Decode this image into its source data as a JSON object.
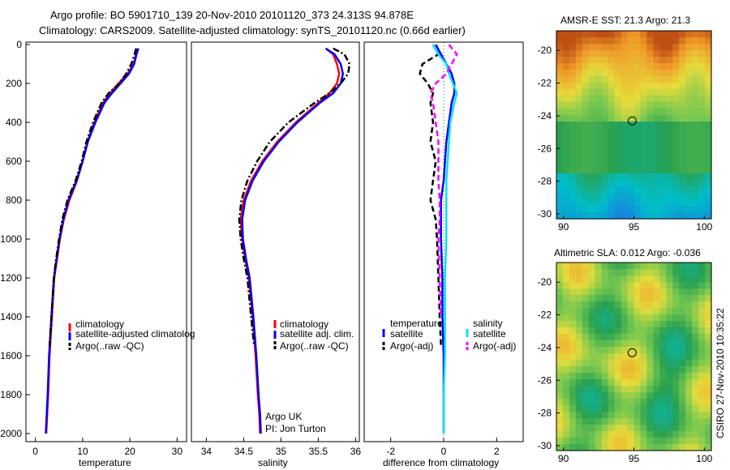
{
  "header": {
    "line1": "Argo profile: BO 5901710_139 20-Nov-2010 20101120_373 24.313S 94.878E",
    "line2": "Climatology: CARS2009. Satellite-adjusted climatology: synTS_20101120.nc (0.66d earlier)"
  },
  "side_label": "CSIRO 27-Nov-2010 10:35:22",
  "colors": {
    "climatology": "#ff0000",
    "satellite": "#0000ff",
    "argo": "#000000",
    "sat_salinity": "#00e5ee",
    "argo_salinity": "#ff00ff"
  },
  "chart_data": [
    {
      "type": "line",
      "panel": "temperature",
      "xlabel": "temperature",
      "ylabel": "",
      "xlim": [
        -2,
        32
      ],
      "ylim": [
        0,
        2050
      ],
      "y_reversed": true,
      "xticks": [
        "0",
        "10",
        "20",
        "30"
      ],
      "yticks": [
        "0",
        "200",
        "400",
        "600",
        "800",
        "1000",
        "1200",
        "1400",
        "1600",
        "1800",
        "2000"
      ],
      "legend": [
        "climatology",
        "satellite-adjusted climatolog",
        "Argo(..raw -QC)"
      ],
      "series": [
        {
          "name": "climatology",
          "color": "#ff0000",
          "dash": "solid",
          "x": [
            21.6,
            21.3,
            20.8,
            19.5,
            17.6,
            15.8,
            14.3,
            12.5,
            11.0,
            10.0,
            8.8,
            7.2,
            6.0,
            5.2,
            4.6,
            4.0,
            3.5,
            3.0,
            2.7,
            2.5,
            2.3
          ],
          "y": [
            20,
            50,
            100,
            150,
            200,
            250,
            300,
            400,
            500,
            600,
            700,
            800,
            900,
            1000,
            1100,
            1200,
            1400,
            1600,
            1800,
            1900,
            2000
          ]
        },
        {
          "name": "satellite-adjusted climatolog",
          "color": "#0000ff",
          "dash": "solid",
          "x": [
            21.8,
            21.4,
            20.9,
            19.8,
            18.0,
            16.2,
            14.6,
            12.7,
            11.1,
            10.0,
            8.7,
            7.0,
            5.9,
            5.1,
            4.5,
            3.9,
            3.4,
            2.9,
            2.6,
            2.4,
            2.2
          ],
          "y": [
            20,
            50,
            100,
            150,
            200,
            250,
            300,
            400,
            500,
            600,
            700,
            800,
            900,
            1000,
            1100,
            1200,
            1400,
            1600,
            1800,
            1900,
            2000
          ]
        },
        {
          "name": "Argo(..raw -QC)",
          "color": "#000000",
          "dash": "dashdot",
          "x": [
            21.3,
            21.0,
            20.3,
            19.2,
            17.8,
            15.5,
            14.0,
            12.2,
            10.8,
            9.8,
            8.5,
            6.8,
            5.7,
            5.0,
            4.4,
            3.9,
            3.4,
            3.0
          ],
          "y": [
            20,
            50,
            100,
            150,
            200,
            250,
            300,
            400,
            500,
            600,
            700,
            800,
            900,
            1000,
            1100,
            1200,
            1400,
            1550
          ]
        }
      ]
    },
    {
      "type": "line",
      "panel": "salinity",
      "xlabel": "salinity",
      "ylabel": "",
      "xlim": [
        33.8,
        36.05
      ],
      "ylim": [
        0,
        2050
      ],
      "y_reversed": true,
      "xticks": [
        "34",
        "34.5",
        "35",
        "35.5",
        "36"
      ],
      "legend": [
        "climatology",
        "satellite adj. clim.",
        "Argo(..raw -QC)"
      ],
      "annotations": [
        "Argo UK",
        "PI: Jon Turton"
      ],
      "series": [
        {
          "name": "climatology",
          "color": "#ff0000",
          "dash": "solid",
          "x": [
            35.6,
            35.7,
            35.75,
            35.78,
            35.75,
            35.65,
            35.5,
            35.2,
            34.95,
            34.75,
            34.6,
            34.5,
            34.46,
            34.48,
            34.52,
            34.57,
            34.62,
            34.66,
            34.69,
            34.71,
            34.72
          ],
          "y": [
            20,
            50,
            100,
            150,
            200,
            250,
            300,
            400,
            500,
            600,
            700,
            800,
            900,
            1000,
            1100,
            1200,
            1400,
            1600,
            1800,
            1900,
            2000
          ]
        },
        {
          "name": "satellite adj. clim.",
          "color": "#0000ff",
          "dash": "solid",
          "x": [
            35.6,
            35.72,
            35.8,
            35.83,
            35.8,
            35.7,
            35.52,
            35.22,
            34.97,
            34.77,
            34.62,
            34.52,
            34.48,
            34.49,
            34.53,
            34.58,
            34.63,
            34.67,
            34.7,
            34.72,
            34.73
          ],
          "y": [
            20,
            50,
            100,
            150,
            200,
            250,
            300,
            400,
            500,
            600,
            700,
            800,
            900,
            1000,
            1100,
            1200,
            1400,
            1600,
            1800,
            1900,
            2000
          ]
        },
        {
          "name": "Argo(..raw -QC)",
          "color": "#000000",
          "dash": "dashdot",
          "x": [
            35.7,
            35.85,
            35.92,
            35.9,
            35.8,
            35.65,
            35.45,
            35.1,
            34.85,
            34.68,
            34.55,
            34.47,
            34.44,
            34.46,
            34.5,
            34.55,
            34.6,
            34.64
          ],
          "y": [
            20,
            50,
            100,
            150,
            200,
            250,
            300,
            400,
            500,
            600,
            700,
            800,
            900,
            1000,
            1100,
            1200,
            1400,
            1550
          ]
        }
      ]
    },
    {
      "type": "line",
      "panel": "difference",
      "xlabel": "difference from climatology",
      "ylabel": "",
      "xlim": [
        -3.0,
        3.0
      ],
      "ylim": [
        0,
        2050
      ],
      "y_reversed": true,
      "xticks": [
        "-2",
        "0",
        "2"
      ],
      "legend_headers": [
        "temperature",
        "salinity"
      ],
      "legend": [
        "satellite",
        "Argo(-adj)",
        "satellite",
        "Argo(-adj)"
      ],
      "series": [
        {
          "name": "temperature satellite",
          "color": "#0000ff",
          "dash": "solid",
          "x": [
            -0.3,
            -0.1,
            0.1,
            0.3,
            0.4,
            0.4,
            0.3,
            0.2,
            0.1,
            0.05,
            0.0,
            -0.1,
            -0.1,
            -0.1,
            -0.05,
            -0.05,
            0.0,
            0.0,
            0.0,
            0.0
          ],
          "y": [
            0,
            50,
            100,
            150,
            200,
            250,
            300,
            400,
            500,
            600,
            700,
            800,
            900,
            1000,
            1200,
            1400,
            1600,
            1800,
            1950,
            2000
          ]
        },
        {
          "name": "temperature Argo(-adj)",
          "color": "#000000",
          "dash": "dashed",
          "x": [
            -0.4,
            -0.2,
            -0.8,
            -0.9,
            -0.6,
            -0.4,
            -0.5,
            -0.4,
            -0.5,
            -0.3,
            -0.4,
            -0.5,
            -0.3,
            -0.25,
            -0.2,
            -0.15,
            -0.1
          ],
          "y": [
            0,
            50,
            100,
            150,
            200,
            250,
            300,
            400,
            500,
            600,
            700,
            800,
            900,
            1000,
            1200,
            1400,
            1550
          ]
        },
        {
          "name": "salinity satellite",
          "color": "#00e5ee",
          "dash": "solid",
          "x": [
            -0.4,
            -0.2,
            0.1,
            0.2,
            0.35,
            0.5,
            0.4,
            0.25,
            0.2,
            0.15,
            0.1,
            0.1,
            0.1,
            0.1,
            0.05,
            0.05,
            0.05,
            0.0,
            0.0
          ],
          "y": [
            0,
            50,
            100,
            150,
            200,
            250,
            300,
            400,
            500,
            600,
            700,
            800,
            900,
            1000,
            1200,
            1400,
            1600,
            1800,
            2000
          ]
        },
        {
          "name": "salinity Argo(-adj)",
          "color": "#ff00ff",
          "dash": "dashed",
          "x": [
            0.2,
            0.5,
            0.3,
            0.1,
            -0.3,
            -0.5,
            -0.4,
            -0.3,
            -0.2,
            -0.2,
            -0.2,
            -0.15,
            -0.15,
            -0.2,
            -0.15,
            -0.1
          ],
          "y": [
            0,
            50,
            100,
            150,
            200,
            250,
            300,
            400,
            500,
            600,
            700,
            800,
            900,
            1000,
            1200,
            1400
          ]
        }
      ]
    },
    {
      "type": "heatmap",
      "panel": "sst",
      "title": "AMSR-E SST: 21.3 Argo: 21.3",
      "xlim": [
        89.5,
        100.5
      ],
      "ylim": [
        -30.3,
        -18.8
      ],
      "xticks": [
        "90",
        "95",
        "100"
      ],
      "yticks": [
        "-20",
        "-22",
        "-24",
        "-26",
        "-28",
        "-30"
      ],
      "marker": {
        "lon": 94.878,
        "lat": -24.313
      }
    },
    {
      "type": "heatmap",
      "panel": "sla",
      "title": "Altimetric SLA: 0.012 Argo: -0.036",
      "xlim": [
        89.5,
        100.5
      ],
      "ylim": [
        -30.3,
        -18.8
      ],
      "xticks": [
        "90",
        "95",
        "100"
      ],
      "yticks": [
        "-20",
        "-22",
        "-24",
        "-26",
        "-28",
        "-30"
      ],
      "marker": {
        "lon": 94.878,
        "lat": -24.313
      }
    }
  ]
}
